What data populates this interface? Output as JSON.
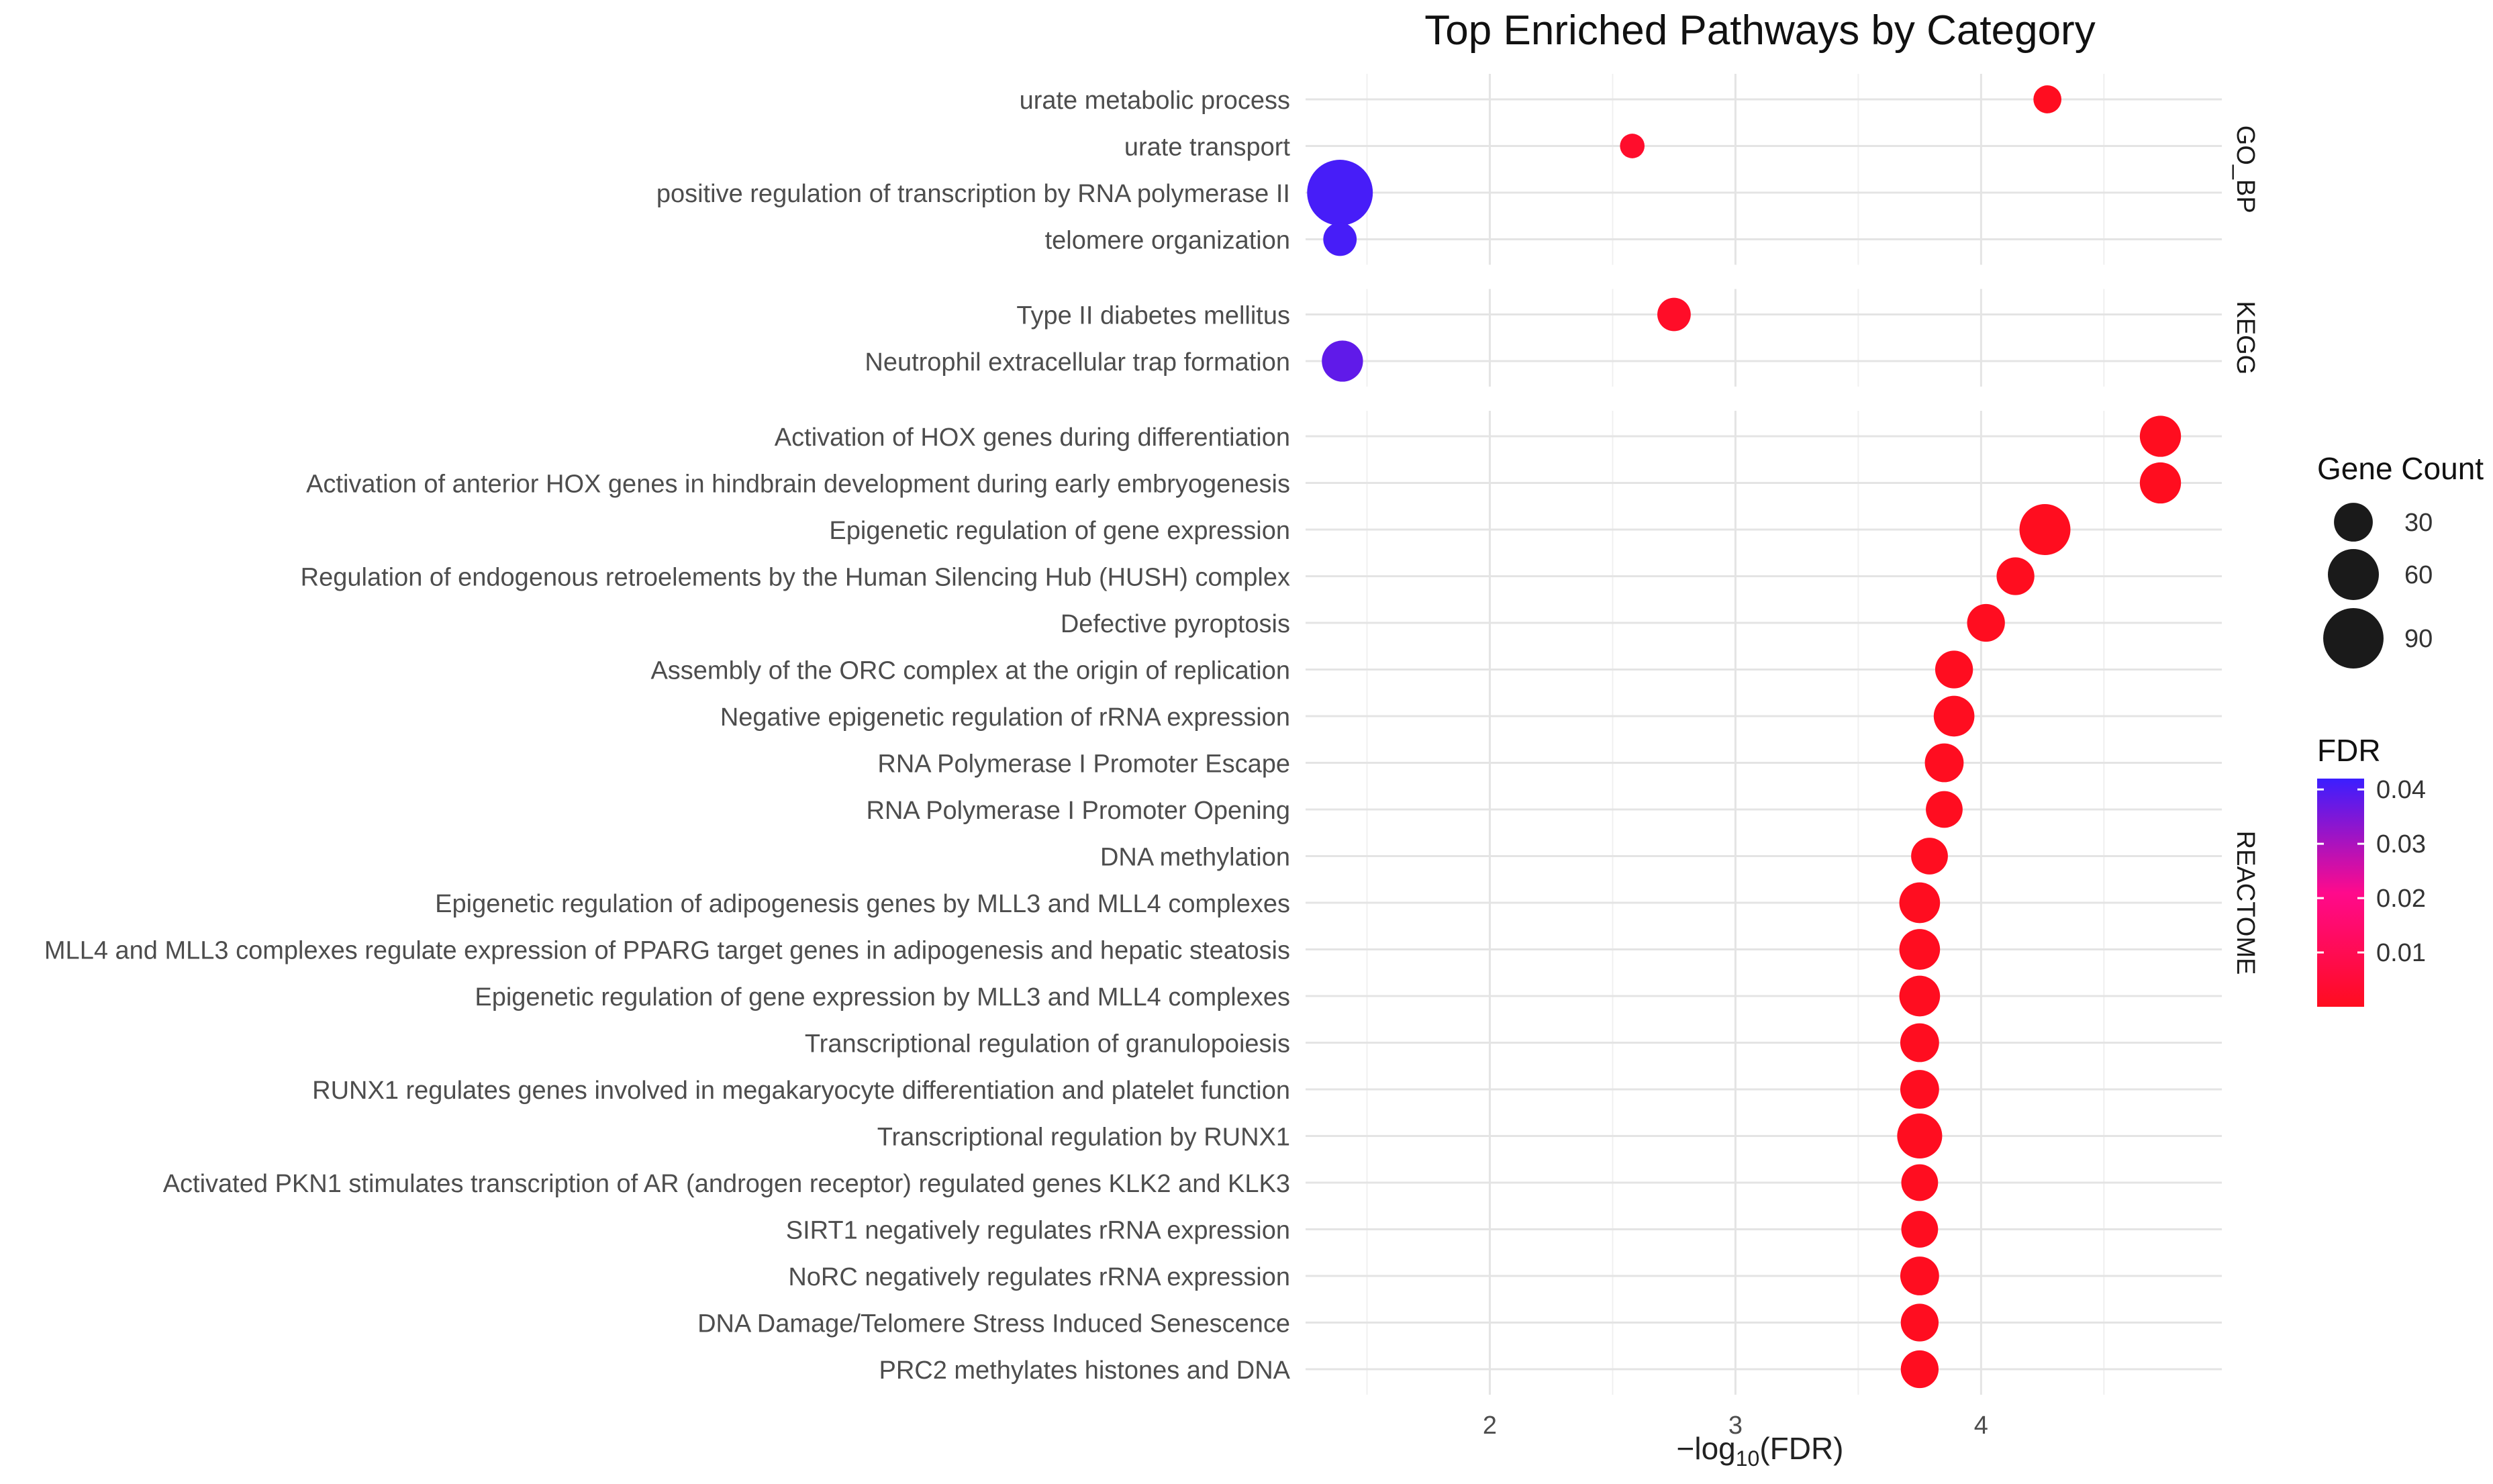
{
  "chart_data": {
    "type": "scatter",
    "title": "Top Enriched Pathways by Category",
    "xlabel": "-log10(FDR)",
    "xlim": [
      1.25,
      4.98
    ],
    "xticks": [
      2,
      3,
      4
    ],
    "grid": true,
    "facets": [
      {
        "name": "GO_BP",
        "points": [
          {
            "term": "urate metabolic process",
            "x": 4.27,
            "count": 12,
            "fdr": 0.0001
          },
          {
            "term": "urate transport",
            "x": 2.58,
            "count": 8,
            "fdr": 0.0026
          },
          {
            "term": "positive regulation of transcription by RNA polymerase II",
            "x": 1.39,
            "count": 110,
            "fdr": 0.0407
          },
          {
            "term": "telomere organization",
            "x": 1.39,
            "count": 20,
            "fdr": 0.0407
          }
        ]
      },
      {
        "name": "KEGG",
        "points": [
          {
            "term": "Type II diabetes mellitus",
            "x": 2.75,
            "count": 20,
            "fdr": 0.0018
          },
          {
            "term": "Neutrophil extracellular trap formation",
            "x": 1.4,
            "count": 35,
            "fdr": 0.038
          }
        ]
      },
      {
        "name": "REACTOME",
        "points": [
          {
            "term": "Activation of HOX genes during differentiation",
            "x": 4.73,
            "count": 35,
            "fdr": 2e-05
          },
          {
            "term": "Activation of anterior HOX genes in hindbrain development during early embryogenesis",
            "x": 4.73,
            "count": 35,
            "fdr": 2e-05
          },
          {
            "term": "Epigenetic regulation of gene expression",
            "x": 4.26,
            "count": 60,
            "fdr": 5e-05
          },
          {
            "term": "Regulation of endogenous retroelements by the Human Silencing Hub (HUSH) complex",
            "x": 4.14,
            "count": 28,
            "fdr": 7e-05
          },
          {
            "term": "Defective pyroptosis",
            "x": 4.02,
            "count": 28,
            "fdr": 0.0001
          },
          {
            "term": "Assembly of the ORC complex at the origin of replication",
            "x": 3.89,
            "count": 28,
            "fdr": 0.00013
          },
          {
            "term": "Negative epigenetic regulation of rRNA expression",
            "x": 3.89,
            "count": 34,
            "fdr": 0.00013
          },
          {
            "term": "RNA Polymerase I Promoter Escape",
            "x": 3.85,
            "count": 30,
            "fdr": 0.00014
          },
          {
            "term": "RNA Polymerase I Promoter Opening",
            "x": 3.85,
            "count": 26,
            "fdr": 0.00014
          },
          {
            "term": "DNA methylation",
            "x": 3.79,
            "count": 26,
            "fdr": 0.00016
          },
          {
            "term": "Epigenetic regulation of adipogenesis genes by MLL3 and MLL4 complexes",
            "x": 3.75,
            "count": 34,
            "fdr": 0.00018
          },
          {
            "term": "MLL4 and MLL3 complexes regulate expression of PPARG target genes in adipogenesis and hepatic steatosis",
            "x": 3.75,
            "count": 34,
            "fdr": 0.00018
          },
          {
            "term": "Epigenetic regulation of gene expression by MLL3 and MLL4 complexes",
            "x": 3.75,
            "count": 34,
            "fdr": 0.00018
          },
          {
            "term": "Transcriptional regulation of granulopoiesis",
            "x": 3.75,
            "count": 30,
            "fdr": 0.00018
          },
          {
            "term": "RUNX1 regulates genes involved in megakaryocyte differentiation and platelet function",
            "x": 3.75,
            "count": 30,
            "fdr": 0.00018
          },
          {
            "term": "Transcriptional regulation by RUNX1",
            "x": 3.75,
            "count": 44,
            "fdr": 0.00018
          },
          {
            "term": "Activated PKN1 stimulates transcription of AR (androgen receptor) regulated genes KLK2 and KLK3",
            "x": 3.75,
            "count": 26,
            "fdr": 0.00018
          },
          {
            "term": "SIRT1 negatively regulates rRNA expression",
            "x": 3.75,
            "count": 26,
            "fdr": 0.00018
          },
          {
            "term": "NoRC negatively regulates rRNA expression",
            "x": 3.75,
            "count": 30,
            "fdr": 0.00018
          },
          {
            "term": "DNA Damage/Telomere Stress Induced Senescence",
            "x": 3.75,
            "count": 28,
            "fdr": 0.00018
          },
          {
            "term": "PRC2 methylates histones and DNA",
            "x": 3.75,
            "count": 28,
            "fdr": 0.00018
          }
        ]
      }
    ],
    "legend_size": {
      "title": "Gene Count",
      "values": [
        30,
        60,
        90
      ]
    },
    "legend_color": {
      "title": "FDR",
      "ticks": [
        0.04,
        0.03,
        0.02,
        0.01
      ],
      "tick_labels": [
        "0.04",
        "0.03",
        "0.02",
        "0.01"
      ],
      "range": [
        0,
        0.042
      ],
      "low_color": "#ff0d1f",
      "mid_color": "#ff0a8c",
      "high_color": "#3b1eff"
    }
  }
}
